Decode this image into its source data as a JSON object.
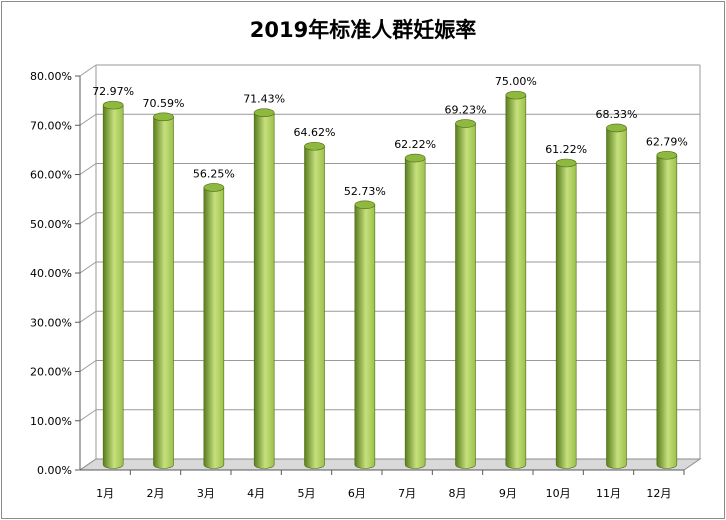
{
  "colors": {
    "bar_dark": "#5a7d1e",
    "bar_mid": "#9cc14a",
    "bar_light": "#c6e07e",
    "bar_top": "#8fb83e",
    "grid": "#9a9a9a",
    "floor": "#d9d9d9"
  },
  "chart_data": {
    "type": "bar",
    "title": "2019年标准人群妊娠率",
    "xlabel": "",
    "ylabel": "",
    "ylim": [
      0,
      80
    ],
    "y_step": 10,
    "y_tick_labels": [
      "0.00%",
      "10.00%",
      "20.00%",
      "30.00%",
      "40.00%",
      "50.00%",
      "60.00%",
      "70.00%",
      "80.00%"
    ],
    "categories": [
      "1月",
      "2月",
      "3月",
      "4月",
      "5月",
      "6月",
      "7月",
      "8月",
      "9月",
      "10月",
      "11月",
      "12月"
    ],
    "values": [
      72.97,
      70.59,
      56.25,
      71.43,
      64.62,
      52.73,
      62.22,
      69.23,
      75.0,
      61.22,
      68.33,
      62.79
    ],
    "data_labels": [
      "72.97%",
      "70.59%",
      "56.25%",
      "71.43%",
      "64.62%",
      "52.73%",
      "62.22%",
      "69.23%",
      "75.00%",
      "61.22%",
      "68.33%",
      "62.79%"
    ],
    "grid": true,
    "legend": "none"
  }
}
